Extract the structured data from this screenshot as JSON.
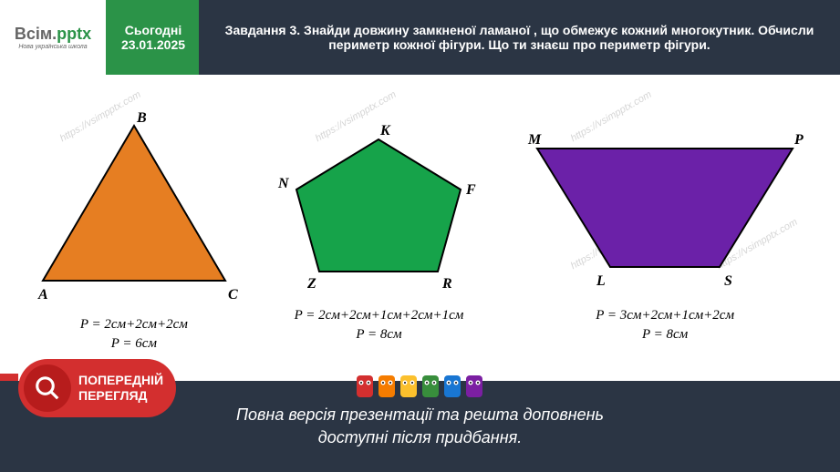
{
  "header": {
    "logo": {
      "text_part1": "Всім.",
      "text_part2": "pptx",
      "subtitle": "Нова українська школа"
    },
    "date": {
      "today_label": "Сьогодні",
      "date_value": "23.01.2025"
    },
    "task": "Завдання 3. Знайди довжину замкненої ламаної , що обмежує кожний многокутник. Обчисли периметр кожної фігури. Що ти знаєш про периметр фігури."
  },
  "shapes": {
    "triangle": {
      "type": "triangle",
      "vertices": {
        "A": "A",
        "B": "B",
        "C": "C"
      },
      "fill_color": "#e67e22",
      "stroke_color": "#000000",
      "formula_line1": "P = 2см+2см+2см",
      "formula_line2": "P = 6см"
    },
    "pentagon": {
      "type": "pentagon",
      "vertices": {
        "N": "N",
        "K": "K",
        "F": "F",
        "R": "R",
        "Z": "Z"
      },
      "fill_color": "#16a34a",
      "stroke_color": "#000000",
      "formula_line1": "P = 2см+2см+1см+2см+1см",
      "formula_line2": "P = 8см"
    },
    "trapezoid": {
      "type": "trapezoid",
      "vertices": {
        "M": "M",
        "P": "P",
        "S": "S",
        "L": "L"
      },
      "fill_color": "#6b21a8",
      "stroke_color": "#000000",
      "formula_line1": "P = 3см+2см+1см+2см",
      "formula_line2": "P = 8см"
    }
  },
  "preview_badge": {
    "line1": "ПОПЕРЕДНІЙ",
    "line2": "ПЕРЕГЛЯД"
  },
  "footer": {
    "line1": "Повна версія презентації та решта доповнень",
    "line2": "доступні після придбання."
  },
  "watermark_text": "https://vsimpptx.com",
  "colors": {
    "header_bg": "#2b3544",
    "green_accent": "#2b9348",
    "red_badge": "#d32f2f",
    "red_dark": "#b71c1c"
  },
  "pencil_colors": [
    "#d32f2f",
    "#f57c00",
    "#fbc02d",
    "#388e3c",
    "#1976d2",
    "#7b1fa2"
  ]
}
